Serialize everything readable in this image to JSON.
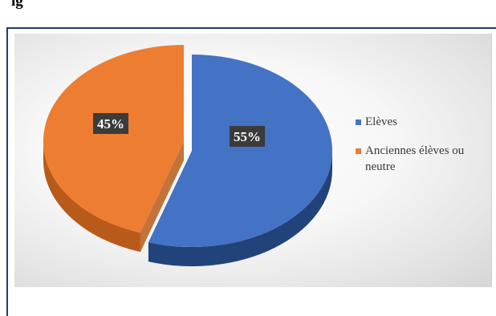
{
  "page": {
    "heading_fragment": "ig"
  },
  "colors": {
    "frame": "#1f3d6b",
    "label_box": "#3b3b3b",
    "label_text": "#ffffff"
  },
  "chart_data": {
    "type": "pie",
    "title": "",
    "style": "3d",
    "legend_position": "right",
    "slices": [
      {
        "label": "Elèves",
        "value": 55,
        "value_label": "55%",
        "color": "#4472c4",
        "side_color": "#22427a"
      },
      {
        "label": "Anciennes élèves ou neutre",
        "value": 45,
        "value_label": "45%",
        "color": "#ed7d31",
        "side_color": "#b85a1a"
      }
    ]
  }
}
